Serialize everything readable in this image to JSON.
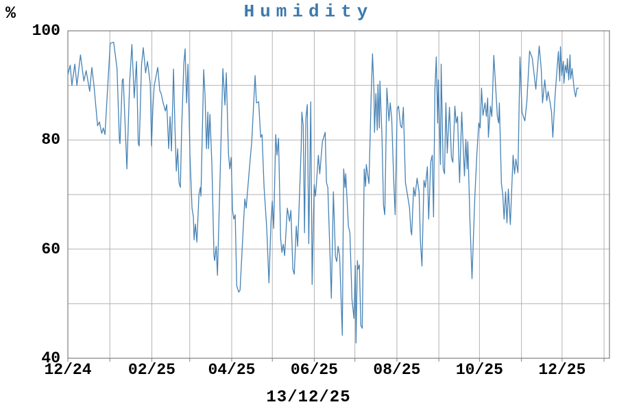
{
  "chart_data": {
    "type": "line",
    "title": "Humidity",
    "unit_label": "%",
    "footer_date": "13/12/25",
    "title_color": "#3c79ad",
    "grid_color": "#b2b2b2",
    "frame_color": "#7f7f7f",
    "text_color": "#000000",
    "ylim": [
      40,
      100
    ],
    "y_grid_step": 10,
    "y_axis": {
      "tick_values": [
        100,
        80,
        60,
        40
      ]
    },
    "x_axis": {
      "range_days": [
        0,
        400
      ],
      "month_tick_days": [
        0,
        31,
        62,
        90,
        121,
        151,
        182,
        212,
        243,
        274,
        304,
        335,
        365,
        396
      ],
      "tick_labels": [
        {
          "day": 0,
          "label": "12/24"
        },
        {
          "day": 62,
          "label": "02/25"
        },
        {
          "day": 121,
          "label": "04/25"
        },
        {
          "day": 182,
          "label": "06/25"
        },
        {
          "day": 243,
          "label": "08/25"
        },
        {
          "day": 304,
          "label": "10/25"
        },
        {
          "day": 365,
          "label": "12/25"
        }
      ]
    },
    "series": [
      {
        "name": "Humidity",
        "color": "#4682b4",
        "points": [
          [
            0,
            92
          ],
          [
            1.7,
            93.7
          ],
          [
            3,
            90
          ],
          [
            5.1,
            93.9
          ],
          [
            6.7,
            90
          ],
          [
            9.3,
            95.6
          ],
          [
            11.8,
            90.8
          ],
          [
            13.5,
            92.7
          ],
          [
            16.1,
            88.9
          ],
          [
            17.7,
            93.3
          ],
          [
            19.4,
            89.7
          ],
          [
            21.9,
            82.6
          ],
          [
            23.3,
            83.3
          ],
          [
            25,
            81.2
          ],
          [
            26.2,
            82.2
          ],
          [
            27.4,
            81
          ],
          [
            29.5,
            90.2
          ],
          [
            31.3,
            97.7
          ],
          [
            33.8,
            97.9
          ],
          [
            36.3,
            93.1
          ],
          [
            38,
            80.1
          ],
          [
            38.5,
            79.3
          ],
          [
            40.2,
            91
          ],
          [
            40.9,
            91.2
          ],
          [
            42.6,
            81
          ],
          [
            43.6,
            74.7
          ],
          [
            45.6,
            90.6
          ],
          [
            47.3,
            97.5
          ],
          [
            49,
            87.7
          ],
          [
            50.7,
            94.4
          ],
          [
            52,
            79.3
          ],
          [
            52.7,
            78.9
          ],
          [
            54.4,
            93.7
          ],
          [
            55.7,
            96.9
          ],
          [
            57.4,
            92.3
          ],
          [
            58.8,
            94.4
          ],
          [
            60.8,
            90.4
          ],
          [
            61.8,
            78.9
          ],
          [
            62.8,
            86
          ],
          [
            63.8,
            90
          ],
          [
            66.4,
            93.3
          ],
          [
            67.9,
            89
          ],
          [
            68.9,
            88.5
          ],
          [
            70.4,
            86.8
          ],
          [
            72,
            85.3
          ],
          [
            73,
            86.5
          ],
          [
            74.5,
            78.4
          ],
          [
            75.5,
            84.3
          ],
          [
            76.5,
            78
          ],
          [
            78,
            93
          ],
          [
            79.1,
            82.2
          ],
          [
            80.1,
            74.3
          ],
          [
            81.1,
            78.4
          ],
          [
            82.1,
            72.2
          ],
          [
            83.1,
            71.3
          ],
          [
            84.1,
            82.6
          ],
          [
            85.6,
            93.9
          ],
          [
            86.6,
            96.7
          ],
          [
            87.7,
            86.8
          ],
          [
            88.7,
            93.9
          ],
          [
            90.2,
            77.2
          ],
          [
            91.7,
            67.5
          ],
          [
            92.7,
            65.9
          ],
          [
            93.2,
            61.7
          ],
          [
            94.2,
            64.6
          ],
          [
            95.3,
            61.3
          ],
          [
            96.8,
            70
          ],
          [
            97.8,
            71.3
          ],
          [
            98.3,
            69.7
          ],
          [
            100.3,
            92.9
          ],
          [
            101.3,
            88.1
          ],
          [
            102.4,
            78.4
          ],
          [
            103.4,
            85.1
          ],
          [
            103.9,
            78.4
          ],
          [
            104.9,
            84.7
          ],
          [
            106.4,
            75.5
          ],
          [
            107.9,
            58.8
          ],
          [
            108.4,
            57.9
          ],
          [
            109.5,
            60.5
          ],
          [
            110.5,
            55.2
          ],
          [
            113,
            78.9
          ],
          [
            114.5,
            93.1
          ],
          [
            116,
            86.4
          ],
          [
            117,
            92.3
          ],
          [
            118.6,
            77.6
          ],
          [
            119.6,
            74.7
          ],
          [
            120.6,
            76.8
          ],
          [
            121.6,
            67.1
          ],
          [
            122.6,
            65.5
          ],
          [
            123.6,
            66.3
          ],
          [
            124.7,
            53.3
          ],
          [
            126.2,
            52.1
          ],
          [
            127.2,
            52.5
          ],
          [
            128.7,
            60
          ],
          [
            130.7,
            69.2
          ],
          [
            131.7,
            67.5
          ],
          [
            133.8,
            74
          ],
          [
            135.8,
            79.7
          ],
          [
            138.3,
            91.8
          ],
          [
            139.3,
            86.8
          ],
          [
            140.9,
            87
          ],
          [
            142.4,
            80.5
          ],
          [
            143.4,
            81
          ],
          [
            144.9,
            71.3
          ],
          [
            146.9,
            63.8
          ],
          [
            148.5,
            53.8
          ],
          [
            150,
            65
          ],
          [
            151,
            68.8
          ],
          [
            152,
            63.8
          ],
          [
            153.5,
            81
          ],
          [
            154.5,
            77.2
          ],
          [
            155.6,
            80.3
          ],
          [
            157.1,
            62.1
          ],
          [
            158.1,
            59.4
          ],
          [
            159.1,
            60.9
          ],
          [
            160.1,
            58.8
          ],
          [
            162.1,
            67.5
          ],
          [
            163.7,
            65.1
          ],
          [
            164.7,
            67.1
          ],
          [
            166.2,
            56.3
          ],
          [
            167.2,
            55.4
          ],
          [
            168.7,
            64.2
          ],
          [
            169.7,
            60.5
          ],
          [
            172.3,
            78.4
          ],
          [
            172.8,
            85.1
          ],
          [
            173.8,
            82.6
          ],
          [
            174.8,
            63
          ],
          [
            175.8,
            84
          ],
          [
            176.8,
            86.5
          ],
          [
            177.9,
            61
          ],
          [
            179.4,
            87
          ],
          [
            180.4,
            53.5
          ],
          [
            181.9,
            71.8
          ],
          [
            182.9,
            69.7
          ],
          [
            185,
            77.2
          ],
          [
            186,
            73.8
          ],
          [
            188,
            79.7
          ],
          [
            190,
            81.4
          ],
          [
            191,
            72.2
          ],
          [
            192,
            71.3
          ],
          [
            193.6,
            58.8
          ],
          [
            194.6,
            51
          ],
          [
            196.1,
            70.5
          ],
          [
            197.6,
            58.6
          ],
          [
            198.6,
            57.7
          ],
          [
            199.6,
            60.5
          ],
          [
            200.7,
            58.8
          ],
          [
            202.7,
            44.2
          ],
          [
            203.7,
            74.7
          ],
          [
            204.7,
            71.3
          ],
          [
            205.2,
            73.8
          ],
          [
            207.2,
            64.2
          ],
          [
            208.3,
            63
          ],
          [
            209.8,
            50.8
          ],
          [
            211.3,
            47.3
          ],
          [
            212.3,
            57
          ],
          [
            212.8,
            42.8
          ],
          [
            213.8,
            57.9
          ],
          [
            214.3,
            56.3
          ],
          [
            215.3,
            57.1
          ],
          [
            216.4,
            46
          ],
          [
            217.4,
            45.5
          ],
          [
            218.9,
            74.7
          ],
          [
            219.9,
            71.5
          ],
          [
            220.4,
            75.5
          ],
          [
            222.4,
            72
          ],
          [
            224,
            88.1
          ],
          [
            225,
            95.8
          ],
          [
            226,
            89.3
          ],
          [
            226.5,
            81.4
          ],
          [
            227.5,
            88.5
          ],
          [
            228.5,
            81.8
          ],
          [
            229,
            90.2
          ],
          [
            230,
            82.2
          ],
          [
            230.5,
            90.8
          ],
          [
            232,
            80.5
          ],
          [
            233.1,
            68
          ],
          [
            234.1,
            66.3
          ],
          [
            235.6,
            89.5
          ],
          [
            237.1,
            83.5
          ],
          [
            238.1,
            86.8
          ],
          [
            239.2,
            83.9
          ],
          [
            240.7,
            72.2
          ],
          [
            241.7,
            66.3
          ],
          [
            243.2,
            85.6
          ],
          [
            244.2,
            86.2
          ],
          [
            245.7,
            82.6
          ],
          [
            246.7,
            82.2
          ],
          [
            247.8,
            86
          ],
          [
            249.3,
            72.2
          ],
          [
            250.8,
            70
          ],
          [
            252.3,
            67.6
          ],
          [
            253.3,
            63.4
          ],
          [
            253.9,
            62.6
          ],
          [
            255.4,
            71.3
          ],
          [
            256.4,
            69.7
          ],
          [
            257.9,
            73
          ],
          [
            259.4,
            70.5
          ],
          [
            260.4,
            61.3
          ],
          [
            261.5,
            56.9
          ],
          [
            263,
            72.6
          ],
          [
            264,
            71.3
          ],
          [
            265.5,
            75.1
          ],
          [
            266.5,
            65.5
          ],
          [
            268,
            76
          ],
          [
            269.1,
            77.2
          ],
          [
            270.1,
            65.9
          ],
          [
            271.1,
            89.3
          ],
          [
            272.1,
            95.2
          ],
          [
            273.1,
            83.1
          ],
          [
            273.6,
            91
          ],
          [
            275.2,
            75.5
          ],
          [
            275.7,
            93.9
          ],
          [
            277.2,
            74.7
          ],
          [
            278.2,
            73.8
          ],
          [
            279.2,
            86.8
          ],
          [
            280.2,
            77.6
          ],
          [
            281.8,
            86
          ],
          [
            283.3,
            76.8
          ],
          [
            284.3,
            75.9
          ],
          [
            285.8,
            86.2
          ],
          [
            286.8,
            83.1
          ],
          [
            287.8,
            84.3
          ],
          [
            289.3,
            72.2
          ],
          [
            290.9,
            85.1
          ],
          [
            292.9,
            73.4
          ],
          [
            293.9,
            80.1
          ],
          [
            294.9,
            74.7
          ],
          [
            295.4,
            79.7
          ],
          [
            296.9,
            65.5
          ],
          [
            298.5,
            54.6
          ],
          [
            300.5,
            69.2
          ],
          [
            302,
            77.2
          ],
          [
            303.5,
            83.1
          ],
          [
            304.5,
            82.2
          ],
          [
            305.5,
            89.5
          ],
          [
            306.6,
            84.5
          ],
          [
            308.1,
            86.8
          ],
          [
            309.1,
            84.3
          ],
          [
            310.1,
            87.7
          ],
          [
            310.6,
            80.5
          ],
          [
            312.1,
            86.2
          ],
          [
            313.1,
            84.3
          ],
          [
            314.6,
            95.5
          ],
          [
            317.2,
            84.3
          ],
          [
            318.2,
            83.1
          ],
          [
            318.7,
            86.8
          ],
          [
            320.2,
            72
          ],
          [
            321.2,
            70
          ],
          [
            322.2,
            65.5
          ],
          [
            323.3,
            70.5
          ],
          [
            324.3,
            64.8
          ],
          [
            325.3,
            71
          ],
          [
            326.8,
            64.5
          ],
          [
            328.8,
            77.2
          ],
          [
            329.9,
            73.8
          ],
          [
            330.9,
            76.5
          ],
          [
            332.4,
            74
          ],
          [
            333.9,
            95.2
          ],
          [
            335.4,
            85.1
          ],
          [
            336.4,
            84.3
          ],
          [
            337.5,
            83.5
          ],
          [
            339,
            87
          ],
          [
            341,
            96.3
          ],
          [
            343,
            95
          ],
          [
            345.6,
            89.3
          ],
          [
            348.1,
            97.2
          ],
          [
            349.6,
            93
          ],
          [
            350.6,
            86.8
          ],
          [
            352.2,
            91
          ],
          [
            353.7,
            87.2
          ],
          [
            354.7,
            88.9
          ],
          [
            356.2,
            86.8
          ],
          [
            357.2,
            85.1
          ],
          [
            358.2,
            80.5
          ],
          [
            359.8,
            88
          ],
          [
            361.3,
            93.1
          ],
          [
            362.3,
            96.2
          ],
          [
            363.3,
            90.8
          ],
          [
            363.8,
            97.1
          ],
          [
            364.8,
            91.8
          ],
          [
            365.9,
            94.4
          ],
          [
            366.4,
            90.4
          ],
          [
            367.4,
            93.7
          ],
          [
            368.4,
            92.3
          ],
          [
            368.9,
            94.9
          ],
          [
            369.9,
            91
          ],
          [
            370.9,
            95.6
          ],
          [
            371.4,
            91.2
          ],
          [
            372.4,
            93.1
          ],
          [
            373.9,
            89.3
          ],
          [
            375,
            87.9
          ],
          [
            376,
            89.5
          ],
          [
            377,
            89.5
          ]
        ]
      }
    ]
  }
}
